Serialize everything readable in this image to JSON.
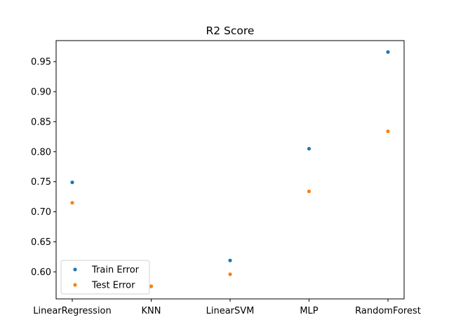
{
  "chart_data": {
    "type": "scatter",
    "title": "R2 Score",
    "xlabel": "",
    "ylabel": "",
    "categories": [
      "LinearRegression",
      "KNN",
      "LinearSVM",
      "MLP",
      "RandomForest"
    ],
    "ylim": [
      0.555,
      0.985
    ],
    "yticks": [
      0.6,
      0.65,
      0.7,
      0.75,
      0.8,
      0.85,
      0.9,
      0.95
    ],
    "ytick_labels": [
      "0.60",
      "0.65",
      "0.70",
      "0.75",
      "0.80",
      "0.85",
      "0.90",
      "0.95"
    ],
    "grid": false,
    "legend_position": "lower-left",
    "series": [
      {
        "name": "Train Error",
        "color": "#1f77b4",
        "values": [
          0.749,
          0.576,
          0.619,
          0.805,
          0.966
        ]
      },
      {
        "name": "Test Error",
        "color": "#ff7f0e",
        "values": [
          0.715,
          0.576,
          0.596,
          0.734,
          0.834
        ]
      }
    ]
  }
}
